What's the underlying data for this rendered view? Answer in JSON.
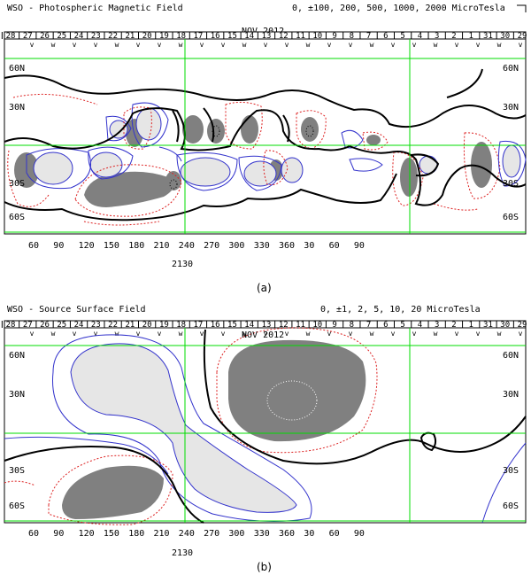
{
  "colors": {
    "grid": "#00dd00",
    "positive_contour": "#3333cc",
    "negative_contour": "#dd2222",
    "positive_fill": "#e6e6e6",
    "negative_fill": "#808080",
    "neutral_line": "#000000"
  },
  "panels": [
    {
      "title": "WSO - Photospheric Magnetic Field",
      "scale": "0, ±100, 200, 500, 1000, 2000 MicroTesla",
      "date": "NOV 2012",
      "day_ticks": [
        "28",
        "27",
        "26",
        "25",
        "24",
        "23",
        "22",
        "21",
        "20",
        "19",
        "18",
        "17",
        "16",
        "15",
        "14",
        "13",
        "12",
        "11",
        "10",
        "9",
        "8",
        "7",
        "6",
        "5",
        "4",
        "3",
        "2",
        "1",
        "31",
        "30",
        "29"
      ],
      "lon_ticks": [
        "60",
        "90",
        "120",
        "150",
        "180",
        "210",
        "240",
        "270",
        "300",
        "330",
        "360",
        "30",
        "60",
        "90"
      ],
      "lat_left": [
        "60N",
        "30N",
        "30S",
        "60S"
      ],
      "lat_right": [
        "60N",
        "30N",
        "30S",
        "60S"
      ],
      "rotation": "2130",
      "label": "(a)"
    },
    {
      "title": "WSO - Source Surface Field",
      "scale": "0, ±1, 2, 5, 10, 20 MicroTesla",
      "date": "NOV 2012",
      "day_ticks": [
        "28",
        "27",
        "26",
        "25",
        "24",
        "23",
        "22",
        "21",
        "20",
        "19",
        "18",
        "17",
        "16",
        "15",
        "14",
        "13",
        "12",
        "11",
        "10",
        "9",
        "8",
        "7",
        "6",
        "5",
        "4",
        "3",
        "2",
        "1",
        "31",
        "30",
        "29"
      ],
      "lon_ticks": [
        "60",
        "90",
        "120",
        "150",
        "180",
        "210",
        "240",
        "270",
        "300",
        "330",
        "360",
        "30",
        "60",
        "90"
      ],
      "lat_left": [
        "60N",
        "30N",
        "30S",
        "60S"
      ],
      "lat_right": [
        "60N",
        "30N",
        "30S",
        "60S"
      ],
      "rotation": "2130",
      "label": "(b)"
    }
  ]
}
